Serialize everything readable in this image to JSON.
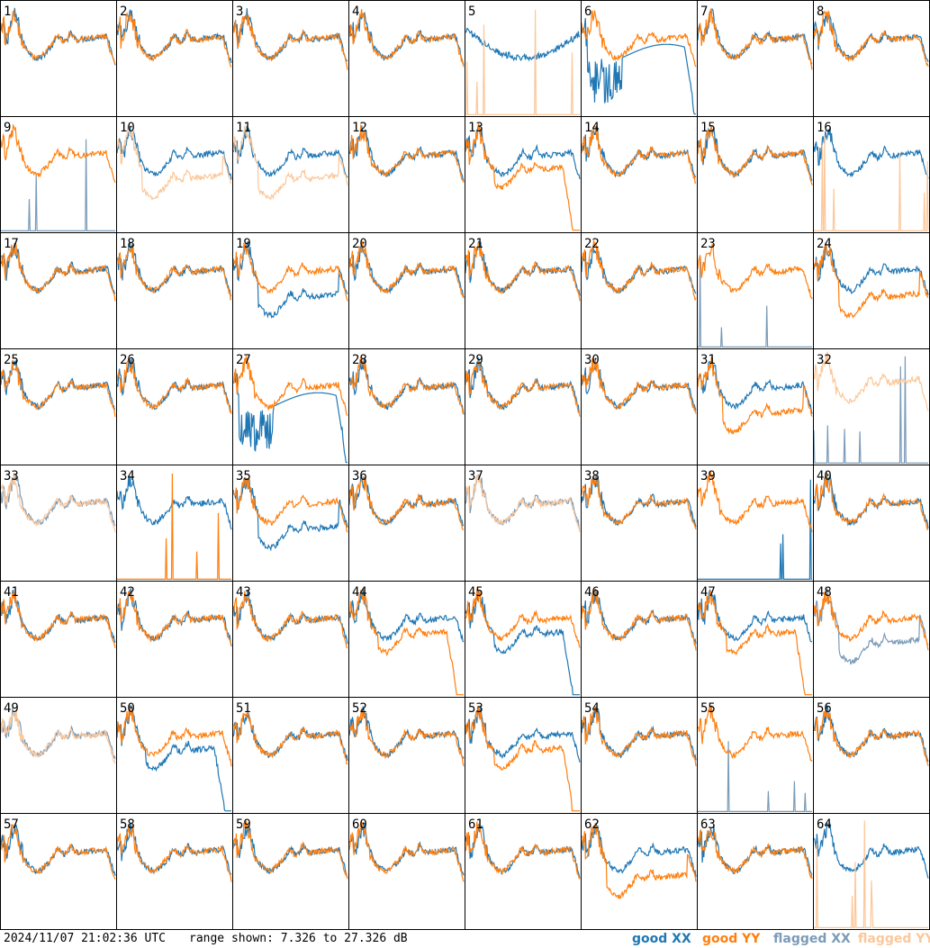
{
  "chart_data": {
    "type": "line",
    "layout": "8x8 small multiples",
    "panel_labels": [
      "1",
      "2",
      "3",
      "4",
      "5",
      "6",
      "7",
      "8",
      "9",
      "10",
      "11",
      "12",
      "13",
      "14",
      "15",
      "16",
      "17",
      "18",
      "19",
      "20",
      "21",
      "22",
      "23",
      "24",
      "25",
      "26",
      "27",
      "28",
      "29",
      "30",
      "31",
      "32",
      "33",
      "34",
      "35",
      "36",
      "37",
      "38",
      "39",
      "40",
      "41",
      "42",
      "43",
      "44",
      "45",
      "46",
      "47",
      "48",
      "49",
      "50",
      "51",
      "52",
      "53",
      "54",
      "55",
      "56",
      "57",
      "58",
      "59",
      "60",
      "61",
      "62",
      "63",
      "64"
    ],
    "ylim": [
      7.326,
      27.326
    ],
    "yunit": "dB",
    "series": [
      {
        "name": "good XX",
        "color": "#1f77b4"
      },
      {
        "name": "good YY",
        "color": "#ff7f0e"
      },
      {
        "name": "flagged XX",
        "color": "#7b9bb8"
      },
      {
        "name": "flagged YY",
        "color": "#fcc79a"
      }
    ],
    "panel_styles": {
      "5": {
        "xx": "odd",
        "yy": "flagged_spike"
      },
      "6": {
        "xx": "deep_dip",
        "yy": "normal"
      },
      "9": {
        "xx": "flagged_spike",
        "yy": "normal"
      },
      "10": {
        "xx": "normal",
        "yy": "flagged_low"
      },
      "11": {
        "xx": "normal",
        "yy": "flagged_low"
      },
      "13": {
        "xx": "normal",
        "yy": "droop"
      },
      "16": {
        "xx": "normal",
        "yy": "flagged_spike"
      },
      "19": {
        "xx": "low",
        "yy": "normal"
      },
      "23": {
        "xx": "flagged_spike",
        "yy": "normal"
      },
      "24": {
        "xx": "normal",
        "yy": "low"
      },
      "27": {
        "xx": "deep_dip",
        "yy": "normal"
      },
      "31": {
        "xx": "normal",
        "yy": "low"
      },
      "32": {
        "xx": "flagged_spike",
        "yy": "flagged_high"
      },
      "33": {
        "xx": "flagged_normal",
        "yy": "flagged_normal"
      },
      "34": {
        "xx": "normal",
        "yy": "spike"
      },
      "35": {
        "xx": "low",
        "yy": "normal"
      },
      "37": {
        "xx": "flagged_normal",
        "yy": "flagged_normal"
      },
      "39": {
        "xx": "spike",
        "yy": "normal"
      },
      "44": {
        "xx": "normal",
        "yy": "droop"
      },
      "45": {
        "xx": "droop",
        "yy": "normal"
      },
      "47": {
        "xx": "normal",
        "yy": "droop"
      },
      "48": {
        "xx": "flagged_low",
        "yy": "normal"
      },
      "49": {
        "xx": "flagged_normal",
        "yy": "flagged_normal"
      },
      "50": {
        "xx": "droop",
        "yy": "normal"
      },
      "53": {
        "xx": "normal",
        "yy": "droop"
      },
      "55": {
        "xx": "flagged_spike",
        "yy": "normal"
      },
      "62": {
        "xx": "normal",
        "yy": "low"
      },
      "64": {
        "xx": "normal",
        "yy": "flagged_spike"
      }
    }
  },
  "footer": {
    "timestamp": "2024/11/07 21:02:36 UTC",
    "range_text": "range shown: 7.326 to 27.326 dB"
  },
  "legend": {
    "good_xx": {
      "label": "good XX",
      "color": "#1f77b4"
    },
    "good_yy": {
      "label": "good YY",
      "color": "#ff7f0e"
    },
    "flagged_xx": {
      "label": "flagged XX",
      "color": "#7b9bb8"
    },
    "flagged_yy": {
      "label": "flagged YY",
      "color": "#fcc79a"
    }
  }
}
